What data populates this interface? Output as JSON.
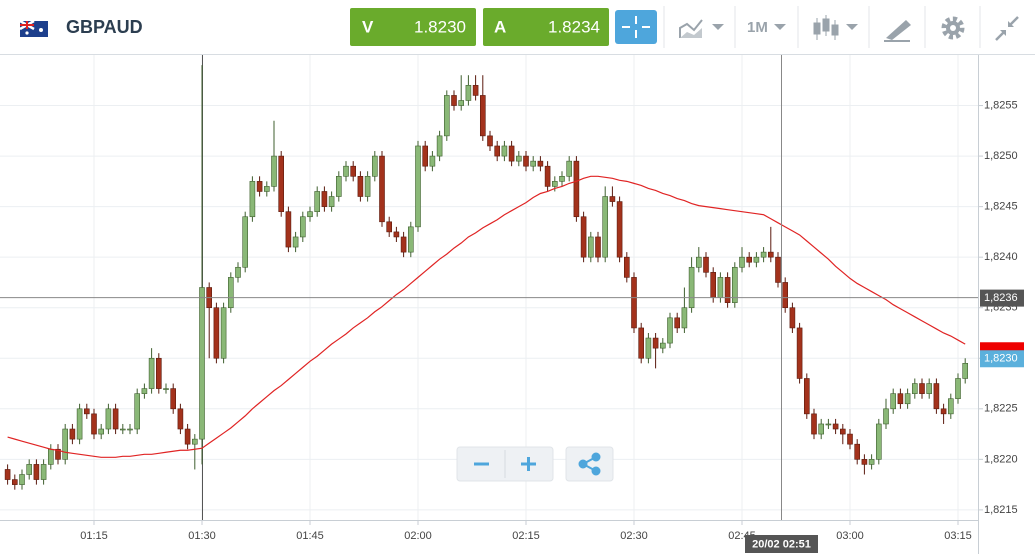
{
  "header": {
    "symbol": "GBPAUD",
    "sell": {
      "label": "V",
      "price": "1.8230"
    },
    "buy": {
      "label": "A",
      "price": "1.8234"
    },
    "timeframe": "1M"
  },
  "chart_data": {
    "type": "candlestick",
    "categories": [
      null,
      null,
      null,
      null,
      null,
      null,
      null,
      null,
      null,
      null,
      null,
      null,
      "01:15",
      null,
      null,
      null,
      null,
      null,
      null,
      null,
      null,
      null,
      null,
      null,
      null,
      null,
      null,
      "01:30",
      null,
      null,
      null,
      null,
      null,
      null,
      null,
      null,
      null,
      null,
      null,
      null,
      null,
      null,
      "01:45",
      null,
      null,
      null,
      null,
      null,
      null,
      null,
      null,
      null,
      null,
      null,
      null,
      null,
      null,
      "02:00",
      null,
      null,
      null,
      null,
      null,
      null,
      null,
      null,
      null,
      null,
      null,
      null,
      null,
      null,
      "02:15",
      null,
      null,
      null,
      null,
      null,
      null,
      null,
      null,
      null,
      null,
      null,
      null,
      null,
      null,
      "02:30",
      null,
      null,
      null,
      null,
      null,
      null,
      null,
      null,
      null,
      null,
      null,
      null,
      null,
      null,
      "02:45",
      null,
      null,
      null,
      null,
      null,
      null,
      null,
      null,
      null,
      null,
      null,
      null,
      null,
      null,
      "03:00",
      null,
      null,
      null,
      null,
      null,
      null,
      null,
      null,
      null,
      null,
      null,
      null,
      null,
      null,
      "03:15",
      null
    ],
    "open": [
      1.8219,
      1.8218,
      1.82175,
      1.82185,
      1.82195,
      1.8218,
      1.82195,
      1.8221,
      1.822,
      1.8223,
      1.8222,
      1.8225,
      1.82245,
      1.82225,
      1.8223,
      1.8225,
      1.8223,
      1.8223,
      1.8223,
      1.82265,
      1.8227,
      1.823,
      1.8227,
      1.8227,
      1.8225,
      1.8223,
      1.82215,
      1.8222,
      1.8237,
      1.8235,
      1.823,
      1.8235,
      1.8238,
      1.8239,
      1.8244,
      1.82475,
      1.82465,
      1.8247,
      1.825,
      1.82445,
      1.8241,
      1.8242,
      1.8244,
      1.82445,
      1.82465,
      1.8245,
      1.8246,
      1.8248,
      1.8249,
      1.8248,
      1.8246,
      1.8248,
      1.825,
      1.82435,
      1.82425,
      1.8242,
      1.82405,
      1.8243,
      1.8251,
      1.8249,
      1.825,
      1.8252,
      1.8256,
      1.8255,
      1.82555,
      1.8257,
      1.8256,
      1.8252,
      1.8251,
      1.825,
      1.8251,
      1.82495,
      1.825,
      1.8249,
      1.82495,
      1.8249,
      1.8247,
      1.82475,
      1.8248,
      1.82495,
      1.8244,
      1.824,
      1.8242,
      1.824,
      1.8246,
      1.82455,
      1.824,
      1.8238,
      1.8233,
      1.823,
      1.8232,
      1.8231,
      1.82315,
      1.8234,
      1.8233,
      1.8235,
      1.8239,
      1.824,
      1.82385,
      1.8236,
      1.8238,
      1.82355,
      1.8239,
      1.824,
      1.82395,
      1.824,
      1.82405,
      1.824,
      1.82375,
      1.8235,
      1.8233,
      1.8228,
      1.82245,
      1.82225,
      1.82235,
      1.82235,
      1.8223,
      1.82225,
      1.82215,
      1.822,
      1.82195,
      1.822,
      1.82235,
      1.8225,
      1.82265,
      1.82255,
      1.82265,
      1.82275,
      1.82265,
      1.82275,
      1.8225,
      1.82245,
      1.8226,
      1.8228
    ],
    "high": [
      1.82195,
      1.82185,
      1.8219,
      1.822,
      1.822,
      1.822,
      1.82215,
      1.82215,
      1.82235,
      1.82235,
      1.82255,
      1.82255,
      1.8225,
      1.82235,
      1.82255,
      1.82255,
      1.82235,
      1.82235,
      1.8227,
      1.82275,
      1.8231,
      1.82305,
      1.82275,
      1.82275,
      1.82255,
      1.82235,
      1.82225,
      1.8259,
      1.82375,
      1.82355,
      1.82355,
      1.82385,
      1.82395,
      1.82445,
      1.8248,
      1.8248,
      1.82475,
      1.82535,
      1.82505,
      1.8245,
      1.82425,
      1.82445,
      1.8245,
      1.8247,
      1.8247,
      1.82465,
      1.82485,
      1.82495,
      1.82495,
      1.82485,
      1.82485,
      1.82505,
      1.82505,
      1.8244,
      1.8243,
      1.82425,
      1.82435,
      1.82515,
      1.82515,
      1.82505,
      1.82525,
      1.82565,
      1.82565,
      1.8258,
      1.8258,
      1.8258,
      1.8258,
      1.82525,
      1.82515,
      1.82515,
      1.82515,
      1.82505,
      1.82505,
      1.825,
      1.825,
      1.82495,
      1.8248,
      1.82485,
      1.825,
      1.825,
      1.82445,
      1.82425,
      1.82425,
      1.8247,
      1.8247,
      1.8246,
      1.82405,
      1.82385,
      1.82335,
      1.82325,
      1.82325,
      1.8232,
      1.82345,
      1.82345,
      1.8237,
      1.824,
      1.8241,
      1.82405,
      1.8239,
      1.82385,
      1.82385,
      1.82395,
      1.8241,
      1.82405,
      1.82405,
      1.8241,
      1.8243,
      1.82405,
      1.8238,
      1.82355,
      1.82335,
      1.82285,
      1.8225,
      1.8224,
      1.8224,
      1.8224,
      1.82235,
      1.8223,
      1.8222,
      1.82205,
      1.82205,
      1.8224,
      1.8226,
      1.8227,
      1.8227,
      1.8227,
      1.8228,
      1.8228,
      1.8228,
      1.8228,
      1.82255,
      1.82265,
      1.82285,
      1.823
    ],
    "low": [
      1.82175,
      1.8217,
      1.8217,
      1.8218,
      1.82175,
      1.82175,
      1.8219,
      1.82195,
      1.82195,
      1.82215,
      1.82215,
      1.8224,
      1.8222,
      1.8222,
      1.82225,
      1.82225,
      1.82225,
      1.82225,
      1.82225,
      1.8226,
      1.82265,
      1.82265,
      1.82265,
      1.82245,
      1.82225,
      1.8221,
      1.8219,
      1.82195,
      1.823,
      1.82295,
      1.82295,
      1.82345,
      1.82375,
      1.82385,
      1.82435,
      1.8246,
      1.8246,
      1.82465,
      1.8244,
      1.82405,
      1.82405,
      1.82415,
      1.82435,
      1.8244,
      1.82445,
      1.82445,
      1.82455,
      1.82475,
      1.82475,
      1.82455,
      1.82455,
      1.82475,
      1.8243,
      1.8242,
      1.82415,
      1.824,
      1.824,
      1.82425,
      1.82485,
      1.82485,
      1.82495,
      1.82515,
      1.82545,
      1.82545,
      1.8255,
      1.82555,
      1.82515,
      1.82505,
      1.82495,
      1.82495,
      1.8249,
      1.8249,
      1.82485,
      1.82485,
      1.82485,
      1.82465,
      1.82465,
      1.8247,
      1.82475,
      1.82435,
      1.82395,
      1.82395,
      1.82395,
      1.82395,
      1.8245,
      1.82395,
      1.82375,
      1.82325,
      1.82295,
      1.82295,
      1.8229,
      1.82305,
      1.8231,
      1.82325,
      1.82325,
      1.82345,
      1.82385,
      1.8238,
      1.82355,
      1.82355,
      1.8235,
      1.8235,
      1.82385,
      1.8239,
      1.8239,
      1.82395,
      1.82395,
      1.8237,
      1.82345,
      1.82325,
      1.82275,
      1.8224,
      1.8222,
      1.8222,
      1.8223,
      1.82225,
      1.82215,
      1.8221,
      1.82195,
      1.82185,
      1.8219,
      1.82195,
      1.8223,
      1.82245,
      1.8225,
      1.8225,
      1.8226,
      1.8226,
      1.8226,
      1.82245,
      1.82235,
      1.8224,
      1.82255,
      1.82275
    ],
    "close": [
      1.8218,
      1.82175,
      1.82185,
      1.82195,
      1.8218,
      1.82195,
      1.8221,
      1.822,
      1.8223,
      1.8222,
      1.8225,
      1.82245,
      1.82225,
      1.8223,
      1.8225,
      1.8223,
      1.8223,
      1.8223,
      1.82265,
      1.8227,
      1.823,
      1.8227,
      1.8227,
      1.8225,
      1.8223,
      1.82215,
      1.8222,
      1.8237,
      1.8235,
      1.823,
      1.8235,
      1.8238,
      1.8239,
      1.8244,
      1.82475,
      1.82465,
      1.8247,
      1.825,
      1.82445,
      1.8241,
      1.8242,
      1.8244,
      1.82445,
      1.82465,
      1.8245,
      1.8246,
      1.8248,
      1.8249,
      1.8248,
      1.8246,
      1.8248,
      1.825,
      1.82435,
      1.82425,
      1.8242,
      1.82405,
      1.8243,
      1.8251,
      1.8249,
      1.825,
      1.8252,
      1.8256,
      1.8255,
      1.82555,
      1.8257,
      1.8256,
      1.8252,
      1.8251,
      1.825,
      1.8251,
      1.82495,
      1.825,
      1.8249,
      1.82495,
      1.8249,
      1.8247,
      1.82475,
      1.8248,
      1.82495,
      1.8244,
      1.824,
      1.8242,
      1.824,
      1.8246,
      1.82455,
      1.824,
      1.8238,
      1.8233,
      1.823,
      1.8232,
      1.8231,
      1.82315,
      1.8234,
      1.8233,
      1.8235,
      1.8239,
      1.824,
      1.82385,
      1.8236,
      1.8238,
      1.82355,
      1.8239,
      1.824,
      1.82395,
      1.824,
      1.82405,
      1.824,
      1.82375,
      1.8235,
      1.8233,
      1.8228,
      1.82245,
      1.82225,
      1.82235,
      1.82235,
      1.8223,
      1.82225,
      1.82215,
      1.822,
      1.82195,
      1.822,
      1.82235,
      1.8225,
      1.82265,
      1.82255,
      1.82265,
      1.82275,
      1.82265,
      1.82275,
      1.8225,
      1.82245,
      1.8226,
      1.8228,
      1.82295
    ],
    "colors": {
      "up": "#8ab877",
      "down": "#a3321c"
    },
    "line": {
      "color": "#e02424",
      "values": [
        1.82222,
        1.8222,
        1.82218,
        1.82216,
        1.82214,
        1.82212,
        1.8221,
        1.82209,
        1.82207,
        1.82206,
        1.82205,
        1.82204,
        1.82203,
        1.82202,
        1.82202,
        1.82202,
        1.82203,
        1.82203,
        1.82204,
        1.82205,
        1.82205,
        1.82206,
        1.82207,
        1.82208,
        1.82209,
        1.82209,
        1.8221,
        1.82211,
        1.82216,
        1.82221,
        1.82226,
        1.82231,
        1.82237,
        1.82243,
        1.8225,
        1.82256,
        1.82262,
        1.82268,
        1.82273,
        1.82279,
        1.82285,
        1.82291,
        1.82297,
        1.82302,
        1.82308,
        1.82314,
        1.82319,
        1.82324,
        1.8233,
        1.82335,
        1.8234,
        1.82346,
        1.82351,
        1.82357,
        1.82363,
        1.82368,
        1.82374,
        1.8238,
        1.82386,
        1.82392,
        1.82398,
        1.82403,
        1.82409,
        1.82414,
        1.8242,
        1.82424,
        1.82429,
        1.82433,
        1.82437,
        1.82442,
        1.82446,
        1.8245,
        1.82454,
        1.82459,
        1.82463,
        1.82465,
        1.82468,
        1.8247,
        1.82473,
        1.82475,
        1.82478,
        1.8248,
        1.8248,
        1.82479,
        1.82478,
        1.82476,
        1.82475,
        1.82473,
        1.82471,
        1.82468,
        1.82466,
        1.82463,
        1.82461,
        1.82458,
        1.82456,
        1.82453,
        1.82451,
        1.8245,
        1.82449,
        1.82448,
        1.82447,
        1.82446,
        1.82445,
        1.82444,
        1.82443,
        1.82442,
        1.82438,
        1.82434,
        1.8243,
        1.82426,
        1.82422,
        1.82416,
        1.8241,
        1.82404,
        1.82398,
        1.82391,
        1.82385,
        1.82379,
        1.82374,
        1.8237,
        1.82366,
        1.82362,
        1.82358,
        1.82353,
        1.82349,
        1.82345,
        1.82341,
        1.82337,
        1.82333,
        1.82329,
        1.82325,
        1.82322,
        1.82318,
        1.82314
      ]
    },
    "ylim": [
      1.8214,
      1.826
    ],
    "yticks": [
      {
        "value": 1.8215,
        "label": "1,8215"
      },
      {
        "value": 1.822,
        "label": "1,8220"
      },
      {
        "value": 1.8225,
        "label": "1,8225"
      },
      {
        "value": 1.823,
        "label": "1,8230"
      },
      {
        "value": 1.8235,
        "label": "1,8235"
      },
      {
        "value": 1.824,
        "label": "1,8240"
      },
      {
        "value": 1.8245,
        "label": "1,8245"
      },
      {
        "value": 1.825,
        "label": "1,8250"
      },
      {
        "value": 1.8255,
        "label": "1,8255"
      }
    ],
    "grid": true,
    "crosshair": {
      "price": {
        "value": 1.8236,
        "label": "1,8236"
      },
      "time": "20/02 02:51"
    },
    "last_price": {
      "value": 1.823,
      "label": "1,8230"
    }
  }
}
